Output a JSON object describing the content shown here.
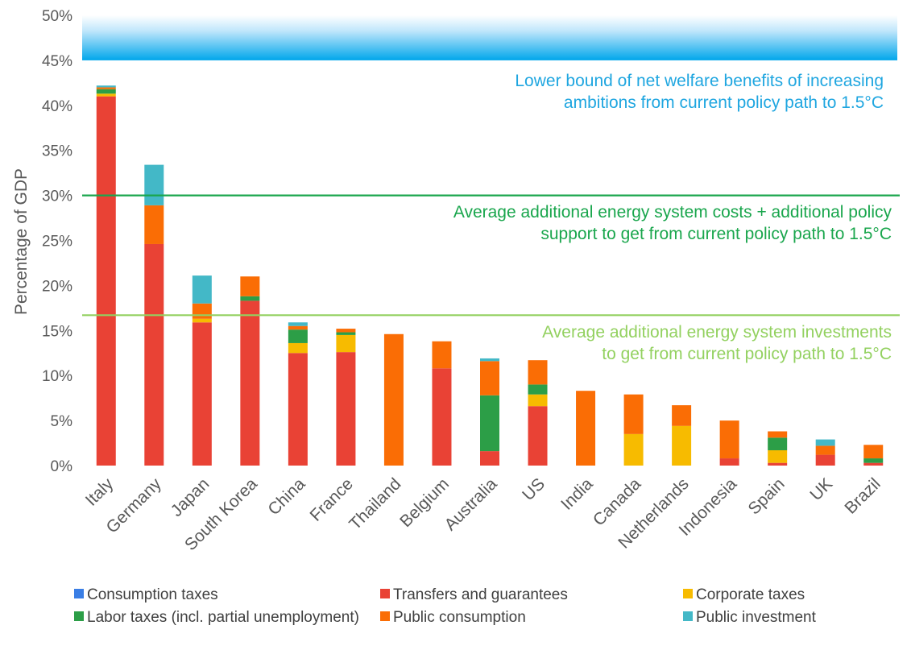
{
  "chart_data": {
    "type": "bar",
    "stacked": true,
    "ylabel": "Percentage of GDP",
    "xlabel": "",
    "ylim": [
      0,
      50
    ],
    "yticks": [
      "0%",
      "5%",
      "10%",
      "15%",
      "20%",
      "25%",
      "30%",
      "35%",
      "40%",
      "45%",
      "50%"
    ],
    "categories": [
      "Italy",
      "Germany",
      "Japan",
      "South Korea",
      "China",
      "France",
      "Thailand",
      "Belgium",
      "Australia",
      "US",
      "India",
      "Canada",
      "Netherlands",
      "Indonesia",
      "Spain",
      "UK",
      "Brazil"
    ],
    "series": [
      {
        "name": "Consumption taxes",
        "color": "#3a7ee5",
        "values": [
          0,
          0,
          0,
          0,
          0,
          0,
          0,
          0,
          0,
          0,
          0,
          0,
          0,
          0,
          0,
          0,
          0
        ]
      },
      {
        "name": "Transfers and guarantees",
        "color": "#e94235",
        "values": [
          41.0,
          24.6,
          15.9,
          18.3,
          12.5,
          12.6,
          0,
          10.8,
          1.6,
          6.6,
          0,
          0,
          0,
          0.8,
          0.3,
          1.2,
          0.3
        ]
      },
      {
        "name": "Corporate taxes",
        "color": "#f7bb00",
        "values": [
          0.3,
          0,
          0.4,
          0,
          1.1,
          1.9,
          0,
          0,
          0,
          1.3,
          0,
          3.5,
          4.4,
          0,
          1.4,
          0,
          0
        ]
      },
      {
        "name": "Labor taxes (incl. partial unemployment)",
        "color": "#2c9e47",
        "values": [
          0.5,
          0,
          0,
          0.5,
          1.5,
          0.3,
          0,
          0,
          6.2,
          1.1,
          0,
          0,
          0,
          0,
          1.4,
          0,
          0.5
        ]
      },
      {
        "name": "Public consumption",
        "color": "#fa6d05",
        "values": [
          0.2,
          4.3,
          1.7,
          2.2,
          0.4,
          0.4,
          14.6,
          3.0,
          3.8,
          2.7,
          8.3,
          4.4,
          2.3,
          4.2,
          0.7,
          1.0,
          1.5
        ]
      },
      {
        "name": "Public investment",
        "color": "#43b8c7",
        "values": [
          0.2,
          4.5,
          3.1,
          0,
          0.4,
          0,
          0,
          0,
          0.3,
          0,
          0,
          0,
          0,
          0,
          0,
          0.7,
          0
        ]
      }
    ],
    "thresholds": [
      {
        "value": 30,
        "color": "#1aa64d",
        "label_line1": "Average additional energy system costs + additional policy",
        "label_line2": "support to get from current policy path to 1.5°C"
      },
      {
        "value": 16.7,
        "color": "#93d160",
        "label_line1": "Average additional energy system investments",
        "label_line2": "to get from current policy path to 1.5°C"
      }
    ],
    "band": {
      "from": 45,
      "to": 50,
      "color": "#00a6eb",
      "label_line1": "Lower bound of net welfare benefits of increasing",
      "label_line2": "ambitions from current policy path to 1.5°C",
      "label_color": "#1fa6e0"
    },
    "grid": false,
    "legend_position": "bottom"
  }
}
